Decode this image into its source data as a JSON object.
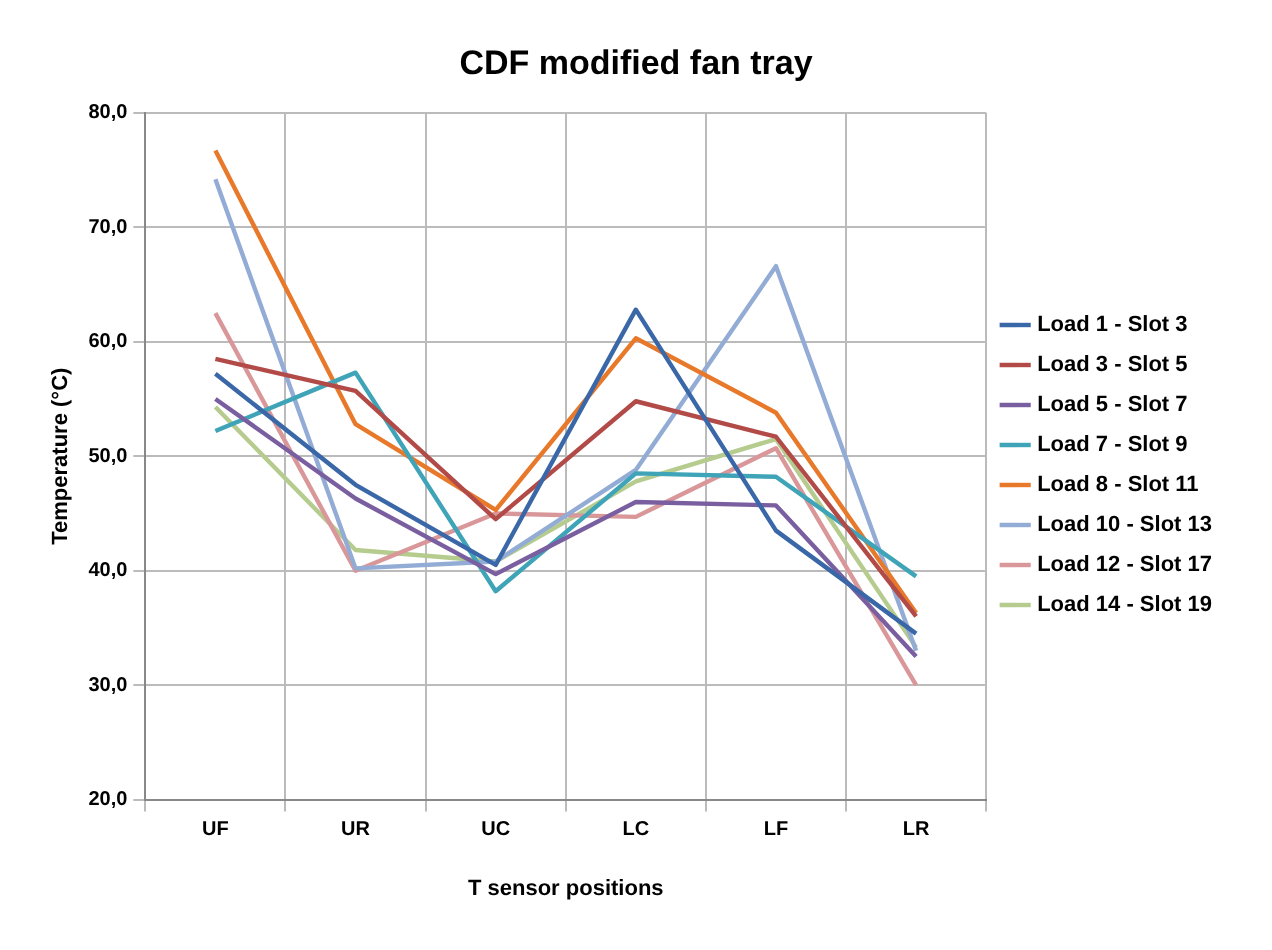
{
  "chart_data": {
    "type": "line",
    "title": "CDF modified fan tray",
    "xlabel": "T sensor positions",
    "ylabel": "Temperature (°C)",
    "categories": [
      "UF",
      "UR",
      "UC",
      "LC",
      "LF",
      "LR"
    ],
    "ylim": [
      20,
      80
    ],
    "yticks": [
      {
        "value": 20,
        "label": "20,0"
      },
      {
        "value": 30,
        "label": "30,0"
      },
      {
        "value": 40,
        "label": "40,0"
      },
      {
        "value": 50,
        "label": "50,0"
      },
      {
        "value": 60,
        "label": "60,0"
      },
      {
        "value": 70,
        "label": "70,0"
      },
      {
        "value": 80,
        "label": "80,0"
      }
    ],
    "grid": true,
    "legend": "right",
    "marker": "none",
    "line_style": "solid",
    "series": [
      {
        "name": "Load 1 - Slot 3",
        "color": "#3a67a8",
        "values": [
          57.2,
          47.5,
          40.5,
          62.8,
          43.5,
          34.5
        ]
      },
      {
        "name": "Load 3 - Slot 5",
        "color": "#b24b48",
        "values": [
          58.5,
          55.7,
          44.5,
          54.8,
          51.7,
          36.0
        ]
      },
      {
        "name": "Load 5 - Slot 7",
        "color": "#7a5fa0",
        "values": [
          55.0,
          46.3,
          39.7,
          46.0,
          45.7,
          32.5
        ]
      },
      {
        "name": "Load 7 - Slot 9",
        "color": "#3fa4b8",
        "values": [
          52.2,
          57.3,
          38.2,
          48.5,
          48.2,
          39.5
        ]
      },
      {
        "name": "Load 8 - Slot 11",
        "color": "#e8792a",
        "values": [
          76.7,
          52.8,
          45.3,
          60.3,
          53.8,
          36.3
        ]
      },
      {
        "name": "Load 10 - Slot 13",
        "color": "#93acd6",
        "values": [
          74.2,
          40.2,
          40.8,
          48.8,
          66.6,
          33.0
        ]
      },
      {
        "name": "Load 12 - Slot 17",
        "color": "#d9979a",
        "values": [
          62.5,
          40.0,
          45.0,
          44.7,
          50.7,
          30.0
        ]
      },
      {
        "name": "Load 14 - Slot 19",
        "color": "#b5cc8e",
        "values": [
          54.3,
          41.8,
          40.8,
          47.8,
          51.5,
          33.3
        ]
      }
    ]
  }
}
